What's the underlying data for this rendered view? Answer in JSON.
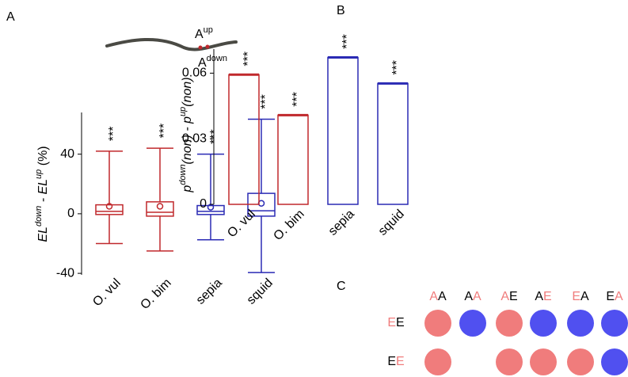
{
  "chart_data": [
    {
      "type": "box",
      "panel": "A",
      "schematic": {
        "labels": [
          [
            {
              "text": "A"
            },
            {
              "text": "up",
              "sup": true
            }
          ],
          [
            {
              "text": "A"
            },
            {
              "text": "down",
              "sup": true
            }
          ]
        ]
      },
      "ylabel": [
        {
          "text": "EL",
          "italic": true
        },
        {
          "text": "down",
          "sup": true,
          "italic": true
        },
        {
          "text": " - ",
          "italic": true
        },
        {
          "text": "EL",
          "italic": true
        },
        {
          "text": "up",
          "sup": true,
          "italic": true
        },
        {
          "text": " (%)"
        }
      ],
      "categories": [
        "O. vul",
        "O. bim",
        "sepia",
        "squid"
      ],
      "colors": [
        "#c0282c",
        "#c0282c",
        "#2a2ab4",
        "#2a2ab4"
      ],
      "whisker_low": [
        -20,
        -25,
        -17.5,
        -39.5
      ],
      "q1": [
        -0.5,
        -1.6,
        -0.5,
        -1.6
      ],
      "median": [
        1.6,
        1,
        1.6,
        2
      ],
      "q3": [
        6,
        8,
        5.5,
        13.7
      ],
      "whisker_high": [
        42,
        44,
        40,
        63.5
      ],
      "mean": [
        5,
        5,
        4.4,
        7
      ],
      "annotations": [
        "***",
        "***",
        "***",
        "***"
      ],
      "ylim": [
        -41,
        68
      ],
      "yticks": [
        -40,
        0,
        40
      ]
    },
    {
      "type": "bar",
      "panel": "B",
      "ylabel": [
        {
          "text": "p",
          "italic": true
        },
        {
          "text": "down",
          "sup": true,
          "italic": true
        },
        {
          "text": "(non) - ",
          "italic": true
        },
        {
          "text": "p",
          "italic": true
        },
        {
          "text": "up",
          "sup": true,
          "italic": true
        },
        {
          "text": "(non)",
          "italic": true
        }
      ],
      "categories": [
        "O. vul",
        "O. bim",
        "sepia",
        "squid"
      ],
      "colors": [
        "#c0282c",
        "#c0282c",
        "#2a2ab4",
        "#2a2ab4"
      ],
      "values": [
        0.0593,
        0.0408,
        0.0672,
        0.0553
      ],
      "annotations": [
        "***",
        "***",
        "***",
        "***"
      ],
      "ylim": [
        0,
        0.071
      ],
      "yticks": [
        0,
        0.03,
        0.06
      ]
    }
  ],
  "panel_c": {
    "label": "C",
    "columns": [
      [
        {
          "text": "A",
          "color": "#f07c7c"
        },
        {
          "text": "A",
          "color": "#000000"
        }
      ],
      [
        {
          "text": "A",
          "color": "#000000"
        },
        {
          "text": "A",
          "color": "#f07c7c"
        }
      ],
      [
        {
          "text": "A",
          "color": "#f07c7c"
        },
        {
          "text": "E",
          "color": "#000000"
        }
      ],
      [
        {
          "text": "A",
          "color": "#000000"
        },
        {
          "text": "E",
          "color": "#f07c7c"
        }
      ],
      [
        {
          "text": "E",
          "color": "#f07c7c"
        },
        {
          "text": "A",
          "color": "#000000"
        }
      ],
      [
        {
          "text": "E",
          "color": "#000000"
        },
        {
          "text": "A",
          "color": "#f07c7c"
        }
      ]
    ],
    "rows": [
      {
        "label": [
          {
            "text": "E",
            "color": "#f07c7c"
          },
          {
            "text": "E",
            "color": "#000000"
          }
        ],
        "dots": [
          "#f07c7c",
          "#5050f0",
          "#f07c7c",
          "#5050f0",
          "#5050f0",
          "#5050f0"
        ]
      },
      {
        "label": [
          {
            "text": "E",
            "color": "#000000"
          },
          {
            "text": "E",
            "color": "#f07c7c"
          }
        ],
        "dots": [
          "#f07c7c",
          null,
          "#f07c7c",
          "#f07c7c",
          "#f07c7c",
          "#5050f0"
        ]
      }
    ]
  }
}
